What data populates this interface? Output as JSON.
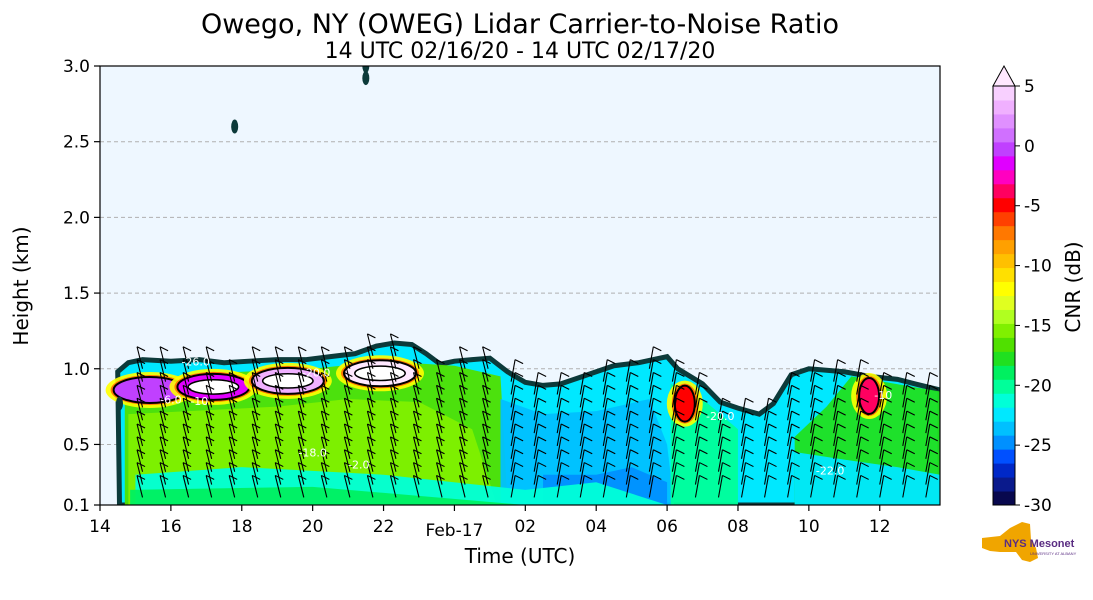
{
  "chart_data": {
    "type": "heatmap",
    "title": "Owego, NY (OWEG) Lidar Carrier-to-Noise Ratio",
    "subtitle": "14 UTC 02/16/20 - 14 UTC 02/17/20",
    "xlabel": "Time (UTC)",
    "ylabel": "Height (km)",
    "x_ticks": [
      {
        "hour": 0,
        "label": "14"
      },
      {
        "hour": 2,
        "label": "16"
      },
      {
        "hour": 4,
        "label": "18"
      },
      {
        "hour": 6,
        "label": "20"
      },
      {
        "hour": 8,
        "label": "22"
      },
      {
        "hour": 10,
        "label": "Feb-17"
      },
      {
        "hour": 12,
        "label": "02"
      },
      {
        "hour": 14,
        "label": "04"
      },
      {
        "hour": 16,
        "label": "06"
      },
      {
        "hour": 18,
        "label": "08"
      },
      {
        "hour": 20,
        "label": "10"
      },
      {
        "hour": 22,
        "label": "12"
      }
    ],
    "y_ticks": [
      {
        "value": 0.1,
        "label": "0.1"
      },
      {
        "value": 0.5,
        "label": "0.5"
      },
      {
        "value": 1.0,
        "label": "1.0"
      },
      {
        "value": 1.5,
        "label": "1.5"
      },
      {
        "value": 2.0,
        "label": "2.0"
      },
      {
        "value": 2.5,
        "label": "2.5"
      },
      {
        "value": 3.0,
        "label": "3.0"
      }
    ],
    "xlim_hours": [
      0,
      23.7
    ],
    "ylim": [
      0.1,
      3.0
    ],
    "grid": "horizontal dashed",
    "background_color": "#eef7ff",
    "colorbar": {
      "label": "CNR (dB)",
      "range": [
        -30,
        5
      ],
      "ticks": [
        {
          "value": 5,
          "label": "5"
        },
        {
          "value": 0,
          "label": "0"
        },
        {
          "value": -5,
          "label": "-5"
        },
        {
          "value": -10,
          "label": "-10"
        },
        {
          "value": -15,
          "label": "-15"
        },
        {
          "value": -20,
          "label": "-20"
        },
        {
          "value": -25,
          "label": "-25"
        },
        {
          "value": -30,
          "label": "-30"
        }
      ],
      "colors": [
        "#08084e",
        "#0a1a8c",
        "#0028c8",
        "#0050ff",
        "#0090ff",
        "#00c0ff",
        "#00e8ff",
        "#00ffd8",
        "#00ff9a",
        "#00f060",
        "#20e020",
        "#50e000",
        "#80f000",
        "#b0ff20",
        "#e0ff20",
        "#ffff00",
        "#ffe000",
        "#ffc000",
        "#ffa000",
        "#ff7800",
        "#ff4000",
        "#ff0000",
        "#ff0060",
        "#ff00c0",
        "#e000ff",
        "#c040ff",
        "#d070ff",
        "#e090ff",
        "#f0b0ff",
        "#f8d0ff",
        "#ffe8ff"
      ]
    },
    "series": [
      {
        "name": "cloud_top_km",
        "points": [
          [
            0.5,
            0.98
          ],
          [
            0.8,
            1.04
          ],
          [
            1.2,
            1.06
          ],
          [
            2.0,
            1.05
          ],
          [
            2.8,
            1.06
          ],
          [
            3.5,
            1.04
          ],
          [
            4.2,
            1.05
          ],
          [
            5.0,
            1.06
          ],
          [
            5.8,
            1.06
          ],
          [
            6.5,
            1.08
          ],
          [
            7.2,
            1.1
          ],
          [
            7.8,
            1.15
          ],
          [
            8.3,
            1.17
          ],
          [
            8.8,
            1.16
          ],
          [
            9.2,
            1.1
          ],
          [
            9.6,
            1.03
          ],
          [
            10.0,
            1.05
          ],
          [
            10.5,
            1.06
          ],
          [
            11.0,
            1.07
          ],
          [
            11.5,
            0.98
          ],
          [
            12.0,
            0.91
          ],
          [
            12.5,
            0.89
          ],
          [
            13.0,
            0.9
          ],
          [
            13.5,
            0.94
          ],
          [
            14.0,
            0.98
          ],
          [
            14.5,
            1.02
          ],
          [
            15.2,
            1.04
          ],
          [
            16.0,
            1.08
          ],
          [
            16.3,
            1.0
          ],
          [
            17.0,
            0.9
          ],
          [
            17.5,
            0.78
          ],
          [
            18.0,
            0.74
          ],
          [
            18.6,
            0.7
          ],
          [
            19.0,
            0.77
          ],
          [
            19.5,
            0.96
          ],
          [
            20.0,
            1.0
          ],
          [
            21.0,
            0.98
          ],
          [
            21.7,
            0.95
          ],
          [
            22.5,
            0.93
          ],
          [
            23.0,
            0.9
          ],
          [
            23.7,
            0.86
          ]
        ]
      },
      {
        "name": "enhanced_cnr_cores",
        "points": [
          [
            1.4,
            0.86,
            -2
          ],
          [
            3.2,
            0.88,
            0
          ],
          [
            5.3,
            0.92,
            2
          ],
          [
            7.9,
            0.97,
            3
          ],
          [
            16.5,
            0.77,
            -5
          ],
          [
            21.7,
            0.82,
            -3
          ]
        ]
      }
    ],
    "contour_labels": [
      {
        "text": "-26.0",
        "hour": 2.7,
        "height": 1.02
      },
      {
        "text": "-6.0",
        "hour": 2.0,
        "height": 0.77
      },
      {
        "text": "-10",
        "hour": 2.8,
        "height": 0.76
      },
      {
        "text": "-18.0",
        "hour": 6.0,
        "height": 0.42
      },
      {
        "text": "-2.0",
        "hour": 7.3,
        "height": 0.34
      },
      {
        "text": "-20.0",
        "hour": 6.1,
        "height": 0.95
      },
      {
        "text": "-22.0",
        "hour": 20.6,
        "height": 0.3
      },
      {
        "text": "-20.0",
        "hour": 17.5,
        "height": 0.66
      },
      {
        "text": "-10",
        "hour": 22.1,
        "height": 0.8
      }
    ]
  },
  "logo": {
    "text": "NYS Mesonet",
    "subtext": "UNIVERSITY AT ALBANY",
    "color": "#5a2d82",
    "state_color": "#f0a500"
  }
}
